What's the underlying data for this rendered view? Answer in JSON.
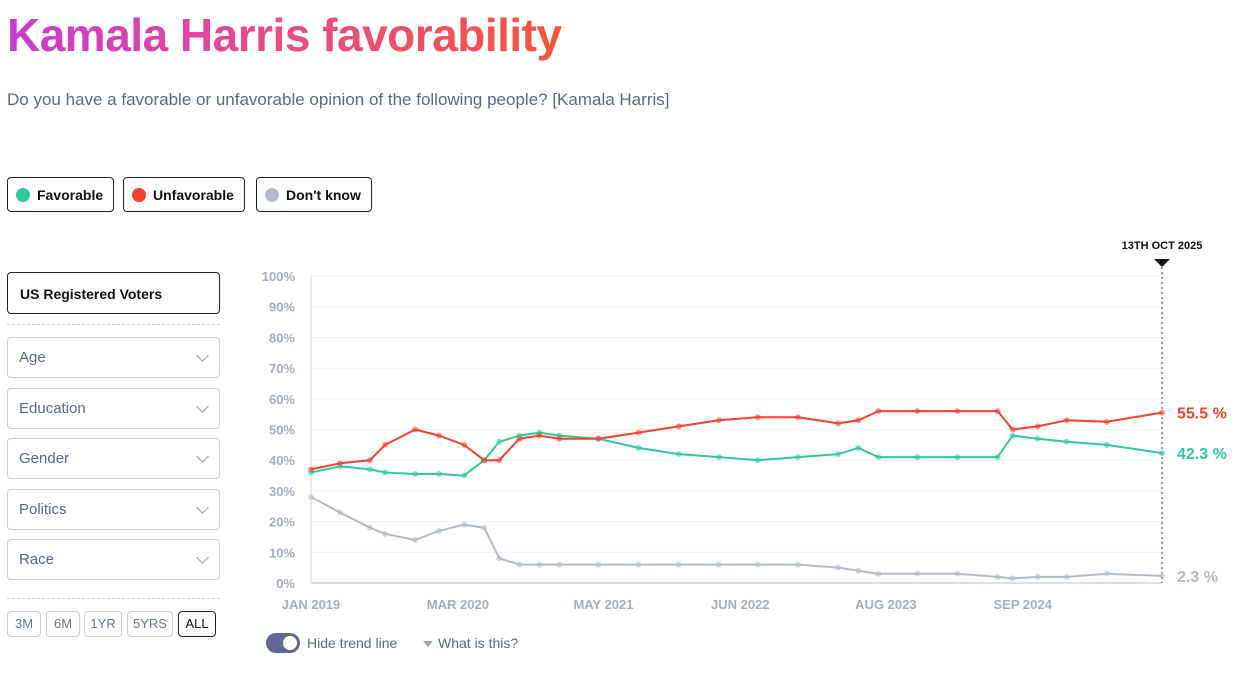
{
  "title": "Kamala Harris favorability",
  "subtitle": "Do you have a favorable or unfavorable opinion of the following people? [Kamala Harris]",
  "legend": [
    {
      "label": "Favorable",
      "color": "#2ec9a0"
    },
    {
      "label": "Unfavorable",
      "color": "#f4402c"
    },
    {
      "label": "Don't know",
      "color": "#b4bac8"
    }
  ],
  "population": "US Registered Voters",
  "filters": [
    "Age",
    "Education",
    "Gender",
    "Politics",
    "Race"
  ],
  "ranges": [
    "3M",
    "6M",
    "1YR",
    "5YRS",
    "ALL"
  ],
  "active_range": "ALL",
  "toggle_label": "Hide trend line",
  "help_label": "What is this?",
  "chart_data": {
    "type": "line",
    "title": "Kamala Harris favorability",
    "ylabel": "",
    "xlabel": "",
    "ylim": [
      0,
      100
    ],
    "xlim": [
      2019.0,
      2025.78
    ],
    "yticks": [
      "0%",
      "10%",
      "20%",
      "30%",
      "40%",
      "50%",
      "60%",
      "70%",
      "80%",
      "90%",
      "100%"
    ],
    "xticks": [
      {
        "x": 2019.0,
        "label": "JAN 2019"
      },
      {
        "x": 2020.17,
        "label": "MAR 2020"
      },
      {
        "x": 2021.33,
        "label": "MAY 2021"
      },
      {
        "x": 2022.42,
        "label": "JUN 2022"
      },
      {
        "x": 2023.58,
        "label": "AUG 2023"
      },
      {
        "x": 2024.67,
        "label": "SEP 2024"
      }
    ],
    "marker": {
      "x": 2025.78,
      "label": "13TH OCT 2025"
    },
    "x": [
      2019.0,
      2019.23,
      2019.47,
      2019.59,
      2019.83,
      2020.02,
      2020.22,
      2020.38,
      2020.5,
      2020.66,
      2020.82,
      2020.98,
      2021.29,
      2021.61,
      2021.93,
      2022.25,
      2022.56,
      2022.88,
      2023.2,
      2023.36,
      2023.52,
      2023.83,
      2024.15,
      2024.47,
      2024.59,
      2024.79,
      2025.02,
      2025.34,
      2025.78
    ],
    "series": [
      {
        "name": "Favorable",
        "color": "#2ec9a0",
        "end_label": "42.3 %",
        "values": [
          36,
          38,
          37,
          36,
          35.5,
          35.5,
          35,
          40,
          46,
          48,
          49,
          48,
          47,
          44,
          42,
          41,
          40,
          41,
          42,
          44,
          41,
          41,
          41,
          41,
          48,
          47,
          46,
          45,
          42.3
        ]
      },
      {
        "name": "Unfavorable",
        "color": "#f4402c",
        "end_label": "55.5 %",
        "values": [
          37,
          39,
          40,
          45,
          50,
          48,
          45,
          40,
          40,
          47,
          48,
          47,
          47,
          49,
          51,
          53,
          54,
          54,
          52,
          53,
          56,
          56,
          56,
          56,
          50,
          51,
          53,
          52.5,
          55.5
        ]
      },
      {
        "name": "Don't know",
        "color": "#b4bac8",
        "end_label": "2.3 %",
        "values": [
          28,
          23,
          18,
          16,
          14,
          17,
          19,
          18,
          8,
          6,
          6,
          6,
          6,
          6,
          6,
          6,
          6,
          6,
          5,
          4,
          3,
          3,
          3,
          2,
          1.5,
          2,
          2,
          3,
          2.3
        ]
      }
    ]
  }
}
